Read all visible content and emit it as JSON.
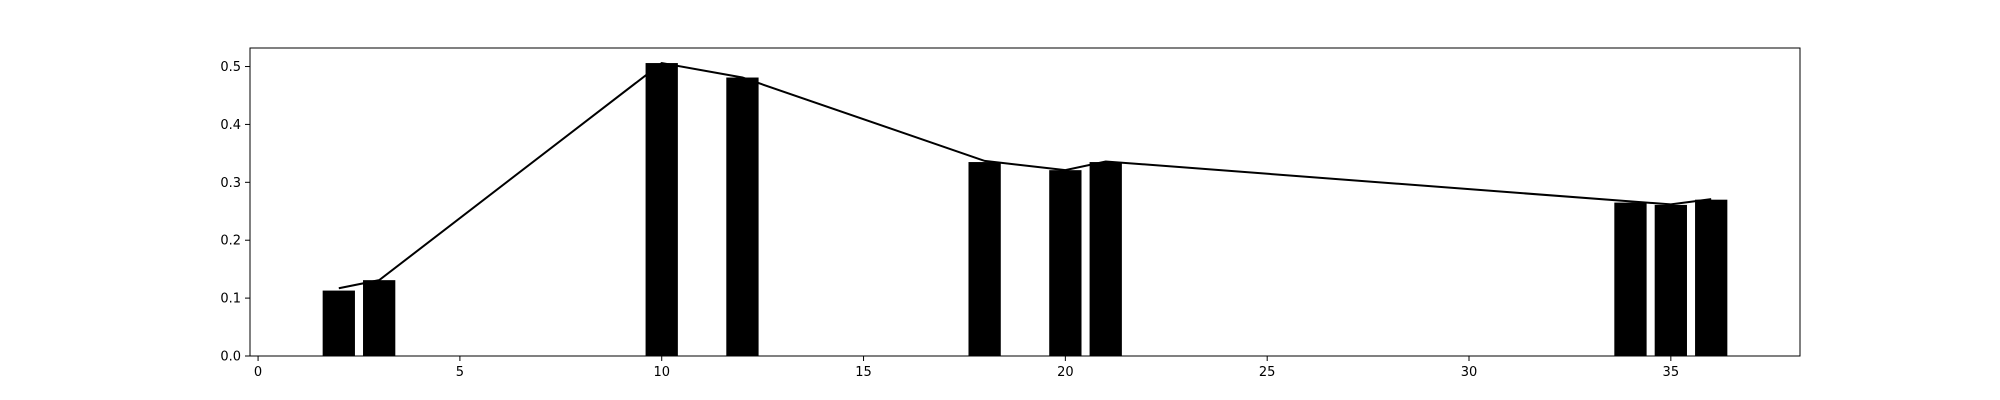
{
  "chart_data": {
    "type": "bar",
    "title": "",
    "xlabel": "",
    "ylabel": "",
    "xlim": [
      -0.2,
      38.2
    ],
    "ylim": [
      0,
      0.532
    ],
    "xticks": [
      0,
      5,
      10,
      15,
      20,
      25,
      30,
      35
    ],
    "yticks": [
      0.0,
      0.1,
      0.2,
      0.3,
      0.4,
      0.5
    ],
    "xtick_labels": [
      "0",
      "5",
      "10",
      "15",
      "20",
      "25",
      "30",
      "35"
    ],
    "ytick_labels": [
      "0.0",
      "0.1",
      "0.2",
      "0.3",
      "0.4",
      "0.5"
    ],
    "bar_width": 0.8,
    "grid": false,
    "legend": "none",
    "series": [
      {
        "type": "bar",
        "x": [
          2,
          3,
          10,
          12,
          18,
          20,
          21,
          34,
          35,
          36
        ],
        "values": [
          0.113,
          0.131,
          0.506,
          0.481,
          0.335,
          0.321,
          0.335,
          0.265,
          0.261,
          0.27
        ]
      },
      {
        "type": "line",
        "x": [
          2,
          3,
          10,
          12,
          18,
          20,
          21,
          34,
          35,
          36
        ],
        "values": [
          0.117,
          0.131,
          0.506,
          0.481,
          0.337,
          0.321,
          0.336,
          0.267,
          0.262,
          0.271
        ]
      }
    ],
    "colors": {
      "bar": "#000000",
      "line": "#000000",
      "axes": "#000000"
    }
  }
}
